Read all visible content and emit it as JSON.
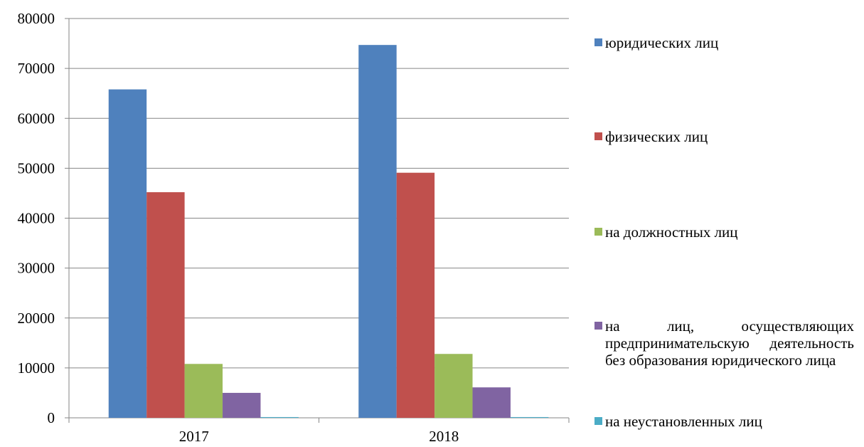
{
  "chart_data": {
    "type": "bar",
    "categories": [
      "2017",
      "2018"
    ],
    "series": [
      {
        "name": "юридических лиц",
        "color": "#4F81BD",
        "values": [
          65800,
          74700
        ]
      },
      {
        "name": "физических  лиц",
        "color": "#C0504D",
        "values": [
          45200,
          49100
        ]
      },
      {
        "name": "на должностных  лиц",
        "color": "#9BBB59",
        "values": [
          10800,
          12800
        ]
      },
      {
        "name": "на  лиц,  осуществляющих предпринимательскую деятельность  без  образования юридического  лица",
        "color": "#8064A2",
        "values": [
          5000,
          6100
        ]
      },
      {
        "name": "на неустановленных лиц",
        "color": "#4BACC6",
        "values": [
          150,
          150
        ]
      }
    ],
    "yticks": [
      "80000",
      "70000",
      "60000",
      "50000",
      "40000",
      "30000",
      "20000",
      "10000",
      "0"
    ],
    "ylim": [
      0,
      80000
    ],
    "grid": true,
    "legend_position": "right",
    "title": "",
    "xlabel": "",
    "ylabel": ""
  }
}
